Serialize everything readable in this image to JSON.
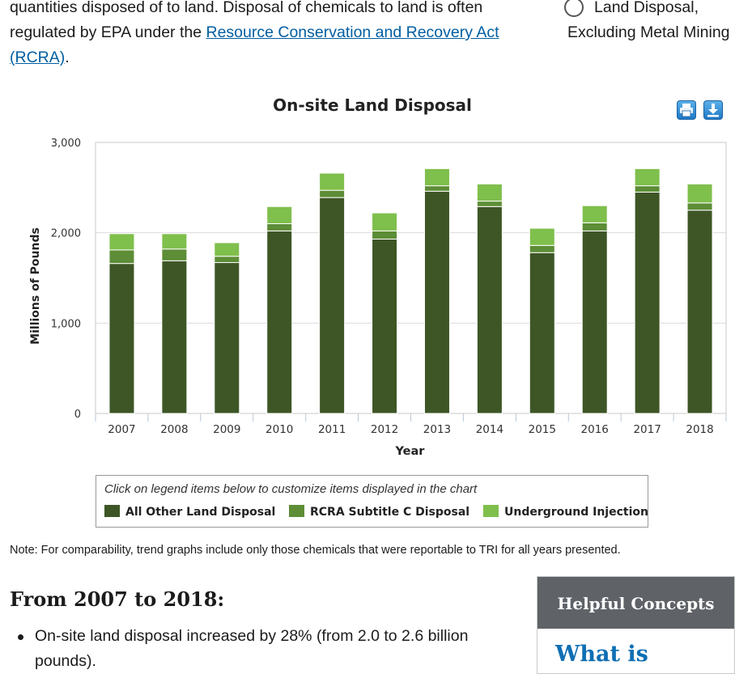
{
  "intro": {
    "text_before": "quantities disposed of to land. Disposal of chemicals to land is often regulated by EPA under the ",
    "link": "Resource Conservation and Recovery Act (RCRA)",
    "text_after": "."
  },
  "radio_option": {
    "line1": "Land Disposal,",
    "line2": "Excluding Metal Mining",
    "checked": false
  },
  "toolbar": {
    "print_icon": "printer-icon",
    "download_icon": "download-icon"
  },
  "chart_data": {
    "type": "bar",
    "stacked": true,
    "title": "On-site Land Disposal",
    "xlabel": "Year",
    "ylabel": "Millions of Pounds",
    "ylim": [
      0,
      3000
    ],
    "yticks": [
      0,
      1000,
      2000,
      3000
    ],
    "ytick_labels": [
      "0",
      "1,000",
      "2,000",
      "3,000"
    ],
    "grid": true,
    "categories": [
      "2007",
      "2008",
      "2009",
      "2010",
      "2011",
      "2012",
      "2013",
      "2014",
      "2015",
      "2016",
      "2017",
      "2018"
    ],
    "series": [
      {
        "name": "All Other Land Disposal",
        "color": "#3e5626",
        "values": [
          1660,
          1690,
          1670,
          2020,
          2390,
          1930,
          2460,
          2290,
          1780,
          2020,
          2450,
          2250
        ]
      },
      {
        "name": "RCRA Subtitle C Disposal",
        "color": "#5d8d36",
        "values": [
          150,
          130,
          70,
          80,
          80,
          90,
          60,
          60,
          80,
          90,
          70,
          80
        ]
      },
      {
        "name": "Underground Injection",
        "color": "#7fbf4c",
        "values": [
          180,
          170,
          150,
          190,
          190,
          200,
          190,
          190,
          190,
          190,
          190,
          210
        ]
      }
    ]
  },
  "legend": {
    "hint": "Click on legend items below to customize items displayed in the chart",
    "items": [
      "All Other Land Disposal",
      "RCRA Subtitle C Disposal",
      "Underground Injection"
    ]
  },
  "note": "Note: For comparability, trend graphs include only those chemicals that were reportable to TRI for all years presented.",
  "section": {
    "heading": "From 2007 to 2018:",
    "bullets": [
      "On-site land disposal increased by 28% (from 2.0 to 2.6 billion pounds)."
    ]
  },
  "helpful": {
    "heading": "Helpful Concepts",
    "link": "What is"
  }
}
